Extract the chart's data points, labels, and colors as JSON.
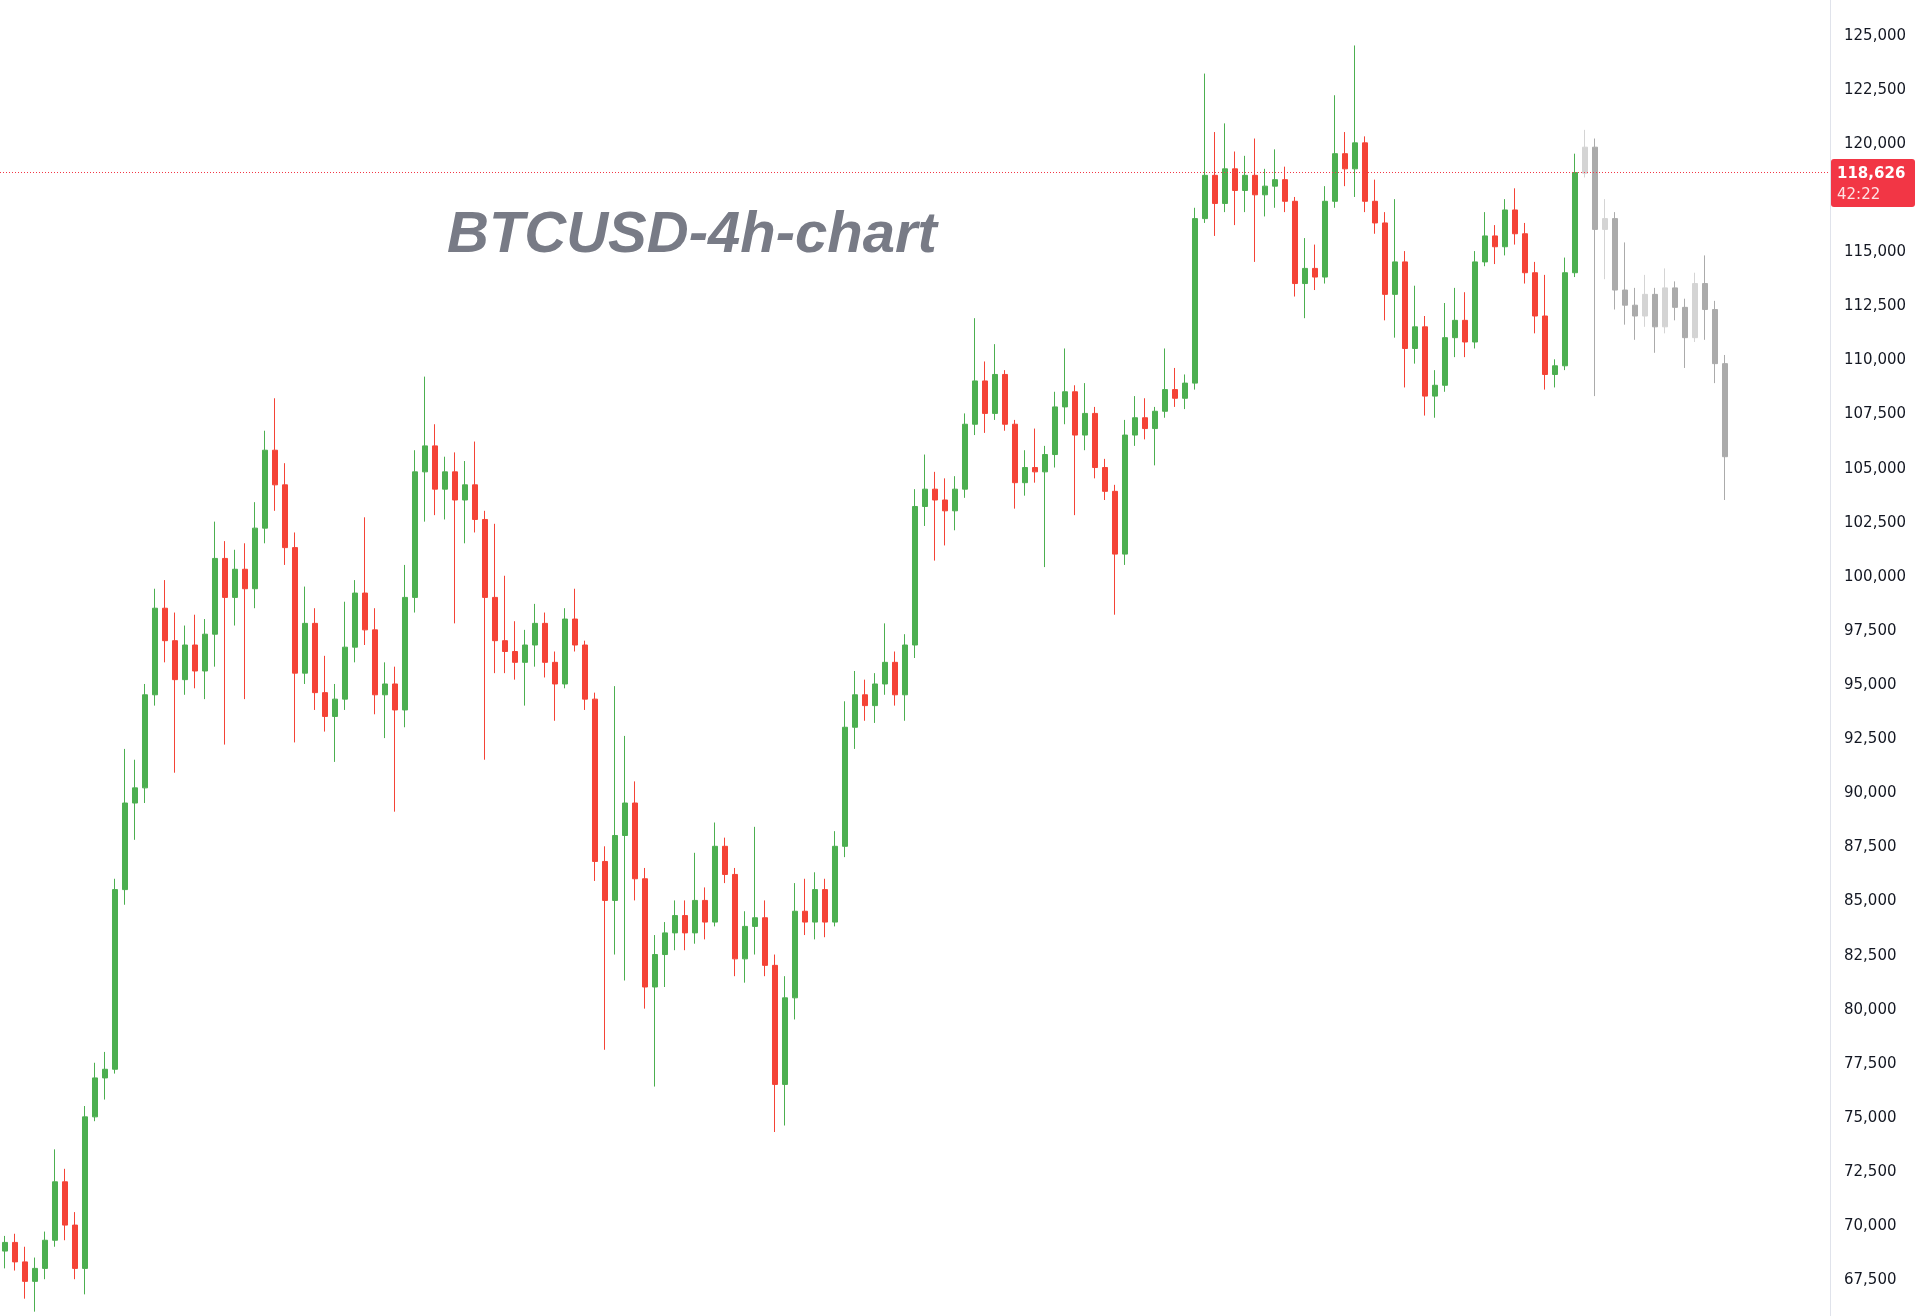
{
  "chart_data": {
    "type": "candlestick",
    "title": "BTCUSD-4h-chart",
    "categories": [
      null,
      null,
      null,
      null,
      null,
      null,
      null,
      null,
      null,
      null,
      null,
      null,
      null,
      null,
      null,
      null,
      null,
      null,
      null,
      null,
      null,
      null,
      null,
      null,
      null,
      null,
      null,
      null,
      null,
      null,
      null,
      null,
      null,
      null,
      null,
      null,
      null,
      null,
      null,
      null,
      null,
      null,
      null,
      null,
      null,
      null,
      null,
      null,
      null,
      null,
      null,
      null,
      null,
      null,
      null,
      null,
      null,
      null,
      null,
      null,
      null,
      null,
      null,
      null,
      null,
      null,
      null,
      null,
      null,
      null,
      null,
      null,
      null,
      null,
      null,
      null,
      null,
      null,
      null,
      null,
      null,
      null,
      null,
      null,
      null,
      null,
      null,
      null,
      null,
      null,
      null,
      null,
      null,
      null,
      null,
      null,
      null,
      null,
      null,
      null,
      null,
      null,
      null,
      null,
      null,
      null,
      null,
      null,
      null,
      null,
      null,
      null,
      null,
      null,
      null,
      null,
      null,
      null,
      null,
      null,
      null,
      null,
      null,
      null,
      null,
      null,
      null,
      null,
      null,
      null,
      null,
      null,
      null,
      null,
      null,
      null,
      null,
      null,
      null,
      null,
      null,
      null,
      null,
      null,
      null,
      null,
      null,
      null,
      null,
      null,
      null,
      null,
      null,
      null,
      null,
      null,
      null,
      null,
      null,
      null,
      null,
      null,
      null,
      null,
      null,
      null,
      null,
      null,
      null,
      null,
      null,
      null,
      null,
      null,
      null,
      null,
      null,
      null,
      null,
      null,
      null,
      null,
      null
    ],
    "series": [
      {
        "ohlc": [
          [
            68800,
            69500,
            68000,
            69200
          ],
          [
            69200,
            69600,
            67900,
            68300
          ],
          [
            68300,
            69000,
            66600,
            67400
          ],
          [
            67400,
            68500,
            66000,
            68000
          ],
          [
            68000,
            69700,
            67500,
            69300
          ],
          [
            69300,
            73500,
            69000,
            72000
          ],
          [
            72000,
            72600,
            69300,
            70000
          ],
          [
            70000,
            70600,
            67500,
            68000
          ],
          [
            68000,
            75500,
            66800,
            75000
          ],
          [
            75000,
            77500,
            74800,
            76800
          ],
          [
            76800,
            78000,
            75800,
            77200
          ],
          [
            77200,
            86000,
            77000,
            85500
          ],
          [
            85500,
            92000,
            84800,
            89500
          ],
          [
            89500,
            91500,
            87800,
            90200
          ],
          [
            90200,
            95000,
            89500,
            94500
          ],
          [
            94500,
            99400,
            94000,
            98500
          ],
          [
            98500,
            99800,
            96000,
            97000
          ],
          [
            97000,
            98300,
            90900,
            95200
          ],
          [
            95200,
            97700,
            94500,
            96800
          ],
          [
            96800,
            98200,
            94800,
            95600
          ],
          [
            95600,
            98000,
            94300,
            97300
          ],
          [
            97300,
            102500,
            95800,
            100800
          ],
          [
            100800,
            101600,
            92200,
            99000
          ],
          [
            99000,
            101200,
            97700,
            100300
          ],
          [
            100300,
            101500,
            94300,
            99400
          ],
          [
            99400,
            103400,
            98500,
            102200
          ],
          [
            102200,
            106700,
            101500,
            105800
          ],
          [
            105800,
            108200,
            103000,
            104200
          ],
          [
            104200,
            105200,
            100500,
            101300
          ],
          [
            101300,
            102000,
            92300,
            95500
          ],
          [
            95500,
            99500,
            95000,
            97800
          ],
          [
            97800,
            98500,
            93800,
            94600
          ],
          [
            94600,
            96300,
            92800,
            93500
          ],
          [
            93500,
            95000,
            91400,
            94300
          ],
          [
            94300,
            98800,
            93800,
            96700
          ],
          [
            96700,
            99800,
            96000,
            99200
          ],
          [
            99200,
            102700,
            96800,
            97500
          ],
          [
            97500,
            98500,
            93600,
            94500
          ],
          [
            94500,
            96000,
            92500,
            95000
          ],
          [
            95000,
            95800,
            89100,
            93800
          ],
          [
            93800,
            100500,
            93000,
            99000
          ],
          [
            99000,
            105800,
            98300,
            104800
          ],
          [
            104800,
            109200,
            102500,
            106000
          ],
          [
            106000,
            107000,
            102800,
            104000
          ],
          [
            104000,
            105500,
            102600,
            104800
          ],
          [
            104800,
            105700,
            97800,
            103500
          ],
          [
            103500,
            105300,
            101500,
            104200
          ],
          [
            104200,
            106200,
            102000,
            102600
          ],
          [
            102600,
            103000,
            91500,
            99000
          ],
          [
            99000,
            102400,
            95500,
            97000
          ],
          [
            97000,
            100000,
            95500,
            96500
          ],
          [
            96500,
            97900,
            95200,
            96000
          ],
          [
            96000,
            97500,
            94000,
            96800
          ],
          [
            96800,
            98700,
            95800,
            97800
          ],
          [
            97800,
            98300,
            95300,
            96000
          ],
          [
            96000,
            96500,
            93300,
            95000
          ],
          [
            95000,
            98500,
            94800,
            98000
          ],
          [
            98000,
            99400,
            96500,
            96800
          ],
          [
            96800,
            97000,
            93800,
            94300
          ],
          [
            94300,
            94600,
            85900,
            86800
          ],
          [
            86800,
            87500,
            78100,
            85000
          ],
          [
            85000,
            94900,
            82500,
            88000
          ],
          [
            88000,
            92600,
            81300,
            89500
          ],
          [
            89500,
            90500,
            85000,
            86000
          ],
          [
            86000,
            86500,
            80000,
            81000
          ],
          [
            81000,
            83400,
            76400,
            82500
          ],
          [
            82500,
            84000,
            81000,
            83500
          ],
          [
            83500,
            85000,
            82700,
            84300
          ],
          [
            84300,
            85000,
            82700,
            83500
          ],
          [
            83500,
            87200,
            83000,
            85000
          ],
          [
            85000,
            85600,
            83200,
            84000
          ],
          [
            84000,
            88600,
            83800,
            87500
          ],
          [
            87500,
            87900,
            85800,
            86200
          ],
          [
            86200,
            86500,
            81500,
            82300
          ],
          [
            82300,
            84500,
            81200,
            83800
          ],
          [
            83800,
            88400,
            82500,
            84200
          ],
          [
            84200,
            85000,
            81500,
            82000
          ],
          [
            82000,
            82500,
            74300,
            76500
          ],
          [
            76500,
            81500,
            74600,
            80500
          ],
          [
            80500,
            85800,
            79500,
            84500
          ],
          [
            84500,
            86000,
            83400,
            84000
          ],
          [
            84000,
            86300,
            83200,
            85500
          ],
          [
            85500,
            86000,
            83300,
            84000
          ],
          [
            84000,
            88200,
            83800,
            87500
          ],
          [
            87500,
            94200,
            87000,
            93000
          ],
          [
            93000,
            95600,
            92000,
            94500
          ],
          [
            94500,
            95200,
            93300,
            94000
          ],
          [
            94000,
            95500,
            93200,
            95000
          ],
          [
            95000,
            97800,
            94500,
            96000
          ],
          [
            96000,
            96500,
            94000,
            94500
          ],
          [
            94500,
            97300,
            93300,
            96800
          ],
          [
            96800,
            104000,
            96200,
            103200
          ],
          [
            103200,
            105600,
            102300,
            104000
          ],
          [
            104000,
            104800,
            100700,
            103500
          ],
          [
            103500,
            104500,
            101400,
            103000
          ],
          [
            103000,
            104600,
            102100,
            104000
          ],
          [
            104000,
            107500,
            103600,
            107000
          ],
          [
            107000,
            111900,
            106500,
            109000
          ],
          [
            109000,
            109900,
            106600,
            107500
          ],
          [
            107500,
            110700,
            107200,
            109300
          ],
          [
            109300,
            109500,
            106700,
            107000
          ],
          [
            107000,
            107200,
            103100,
            104300
          ],
          [
            104300,
            105800,
            103700,
            105000
          ],
          [
            105000,
            106800,
            104300,
            104800
          ],
          [
            104800,
            106000,
            100400,
            105600
          ],
          [
            105600,
            108500,
            105000,
            107800
          ],
          [
            107800,
            110500,
            107000,
            108500
          ],
          [
            108500,
            108800,
            102800,
            106500
          ],
          [
            106500,
            108900,
            105800,
            107500
          ],
          [
            107500,
            107800,
            104500,
            105000
          ],
          [
            105000,
            105400,
            103500,
            103900
          ],
          [
            103900,
            104200,
            98200,
            101000
          ],
          [
            101000,
            107200,
            100500,
            106500
          ],
          [
            106500,
            108300,
            106000,
            107300
          ],
          [
            107300,
            108200,
            106300,
            106800
          ],
          [
            106800,
            107800,
            105100,
            107600
          ],
          [
            107600,
            110500,
            107300,
            108600
          ],
          [
            108600,
            109600,
            107800,
            108200
          ],
          [
            108200,
            109300,
            107700,
            108900
          ],
          [
            108900,
            117000,
            108600,
            116500
          ],
          [
            116500,
            123200,
            116300,
            118500
          ],
          [
            118500,
            120500,
            115700,
            117200
          ],
          [
            117200,
            120900,
            116800,
            118800
          ],
          [
            118800,
            119600,
            116200,
            117800
          ],
          [
            117800,
            119400,
            116800,
            118500
          ],
          [
            118500,
            120200,
            114500,
            117600
          ],
          [
            117600,
            118800,
            116600,
            118000
          ],
          [
            118000,
            119700,
            117000,
            118300
          ],
          [
            118300,
            118900,
            116800,
            117300
          ],
          [
            117300,
            117500,
            112900,
            113500
          ],
          [
            113500,
            115600,
            111900,
            114200
          ],
          [
            114200,
            115300,
            113200,
            113800
          ],
          [
            113800,
            118000,
            113500,
            117300
          ],
          [
            117300,
            122200,
            117000,
            119500
          ],
          [
            119500,
            120500,
            118000,
            118800
          ],
          [
            118800,
            124500,
            117500,
            120000
          ],
          [
            120000,
            120300,
            116800,
            117300
          ],
          [
            117300,
            118300,
            115800,
            116300
          ],
          [
            116300,
            116800,
            111800,
            113000
          ],
          [
            113000,
            117400,
            111000,
            114500
          ],
          [
            114500,
            115000,
            108700,
            110500
          ],
          [
            110500,
            113400,
            109800,
            111500
          ],
          [
            111500,
            112000,
            107400,
            108300
          ],
          [
            108300,
            109500,
            107300,
            108800
          ],
          [
            108800,
            112600,
            108500,
            111000
          ],
          [
            111000,
            113300,
            110100,
            111800
          ],
          [
            111800,
            113100,
            110100,
            110800
          ],
          [
            110800,
            115000,
            110500,
            114500
          ],
          [
            114500,
            116800,
            114300,
            115700
          ],
          [
            115700,
            116200,
            114400,
            115200
          ],
          [
            115200,
            117400,
            114800,
            116900
          ],
          [
            116900,
            117900,
            115300,
            115800
          ],
          [
            115800,
            116300,
            113500,
            114000
          ],
          [
            114000,
            114500,
            111200,
            112000
          ],
          [
            112000,
            113900,
            108600,
            109300
          ],
          [
            109300,
            110000,
            108700,
            109700
          ],
          [
            109700,
            114700,
            109500,
            114000
          ],
          [
            114000,
            119500,
            113800,
            118626
          ],
          null,
          null,
          null,
          null,
          null,
          null,
          null,
          null,
          null,
          null,
          null,
          null,
          null,
          null,
          null,
          null,
          null,
          null,
          null,
          null,
          null,
          null,
          null,
          null,
          null
        ],
        "colors": [
          "#4caf50",
          "#f44336",
          "#f44336",
          "#4caf50",
          "#4caf50",
          "#4caf50",
          "#f44336",
          "#f44336",
          "#4caf50",
          "#4caf50",
          "#4caf50",
          "#4caf50",
          "#4caf50",
          "#4caf50",
          "#4caf50",
          "#4caf50",
          "#f44336",
          "#f44336",
          "#4caf50",
          "#f44336",
          "#4caf50",
          "#4caf50",
          "#f44336",
          "#4caf50",
          "#f44336",
          "#4caf50",
          "#4caf50",
          "#f44336",
          "#f44336",
          "#f44336",
          "#4caf50",
          "#f44336",
          "#f44336",
          "#4caf50",
          "#4caf50",
          "#4caf50",
          "#f44336",
          "#f44336",
          "#4caf50",
          "#f44336",
          "#4caf50",
          "#4caf50",
          "#4caf50",
          "#f44336",
          "#4caf50",
          "#f44336",
          "#4caf50",
          "#f44336",
          "#f44336",
          "#f44336",
          "#f44336",
          "#f44336",
          "#4caf50",
          "#4caf50",
          "#f44336",
          "#f44336",
          "#4caf50",
          "#f44336",
          "#f44336",
          "#f44336",
          "#f44336",
          "#4caf50",
          "#4caf50",
          "#f44336",
          "#f44336",
          "#4caf50",
          "#4caf50",
          "#4caf50",
          "#f44336",
          "#4caf50",
          "#f44336",
          "#4caf50",
          "#f44336",
          "#f44336",
          "#4caf50",
          "#4caf50",
          "#f44336",
          "#f44336",
          "#4caf50",
          "#4caf50",
          "#f44336",
          "#4caf50",
          "#f44336",
          "#4caf50",
          "#4caf50",
          "#4caf50",
          "#f44336",
          "#4caf50",
          "#4caf50",
          "#f44336",
          "#4caf50",
          "#4caf50",
          "#4caf50",
          "#f44336",
          "#f44336",
          "#4caf50",
          "#4caf50",
          "#4caf50",
          "#f44336",
          "#4caf50",
          "#f44336",
          "#f44336",
          "#4caf50",
          "#f44336",
          "#4caf50",
          "#4caf50",
          "#4caf50",
          "#f44336",
          "#4caf50",
          "#f44336",
          "#f44336",
          "#f44336",
          "#4caf50",
          "#4caf50",
          "#f44336",
          "#4caf50",
          "#4caf50",
          "#f44336",
          "#4caf50",
          "#4caf50",
          "#4caf50",
          "#f44336",
          "#4caf50",
          "#f44336",
          "#4caf50",
          "#f44336",
          "#4caf50",
          "#4caf50",
          "#f44336",
          "#f44336",
          "#4caf50",
          "#f44336",
          "#4caf50",
          "#4caf50",
          "#f44336",
          "#4caf50",
          "#f44336",
          "#f44336",
          "#f44336",
          "#4caf50",
          "#f44336",
          "#4caf50",
          "#f44336",
          "#4caf50",
          "#4caf50",
          "#4caf50",
          "#f44336",
          "#4caf50",
          "#4caf50",
          "#f44336",
          "#4caf50",
          "#f44336",
          "#f44336",
          "#f44336",
          "#f44336",
          "#4caf50",
          "#4caf50",
          "#4caf50",
          null,
          null,
          null,
          null,
          null,
          null,
          null,
          null,
          null,
          null,
          null,
          null,
          null,
          null,
          null,
          null,
          null,
          null,
          null,
          null,
          null,
          null,
          null,
          null,
          null
        ]
      },
      {
        "ohlc": [
          null,
          null,
          null,
          null,
          null,
          null,
          null,
          null,
          null,
          null,
          null,
          null,
          null,
          null,
          null,
          null,
          null,
          null,
          null,
          null,
          null,
          null,
          null,
          null,
          null,
          null,
          null,
          null,
          null,
          null,
          null,
          null,
          null,
          null,
          null,
          null,
          null,
          null,
          null,
          null,
          null,
          null,
          null,
          null,
          null,
          null,
          null,
          null,
          null,
          null,
          null,
          null,
          null,
          null,
          null,
          null,
          null,
          null,
          null,
          null,
          null,
          null,
          null,
          null,
          null,
          null,
          null,
          null,
          null,
          null,
          null,
          null,
          null,
          null,
          null,
          null,
          null,
          null,
          null,
          null,
          null,
          null,
          null,
          null,
          null,
          null,
          null,
          null,
          null,
          null,
          null,
          null,
          null,
          null,
          null,
          null,
          null,
          null,
          null,
          null,
          null,
          null,
          null,
          null,
          null,
          null,
          null,
          null,
          null,
          null,
          null,
          null,
          null,
          null,
          null,
          null,
          null,
          null,
          null,
          null,
          null,
          null,
          null,
          null,
          null,
          null,
          null,
          null,
          null,
          null,
          null,
          null,
          null,
          null,
          null,
          null,
          null,
          null,
          null,
          null,
          null,
          null,
          null,
          null,
          null,
          null,
          null,
          null,
          null,
          null,
          null,
          null,
          null,
          null,
          null,
          null,
          null,
          null,
          [
            118600,
            120600,
            118400,
            119800
          ],
          [
            119800,
            120200,
            108300,
            116000
          ],
          [
            116000,
            117400,
            113700,
            116500
          ],
          [
            116500,
            116800,
            112300,
            113200
          ],
          [
            113200,
            115400,
            111600,
            112500
          ],
          [
            112500,
            113300,
            110900,
            112000
          ],
          [
            112000,
            113900,
            111500,
            113000
          ],
          [
            113000,
            113300,
            110300,
            111500
          ],
          [
            111500,
            114200,
            111200,
            113300
          ],
          [
            113300,
            113600,
            111800,
            112400
          ],
          [
            112400,
            112800,
            109600,
            111000
          ],
          [
            111000,
            114000,
            110800,
            113500
          ],
          [
            113500,
            114800,
            110900,
            112300
          ],
          [
            112300,
            112700,
            108900,
            109800
          ],
          [
            109800,
            110200,
            103500,
            105500
          ],
          null,
          null,
          null,
          null,
          null,
          null,
          null,
          null,
          null,
          null
        ],
        "colors": [
          null,
          null,
          null,
          null,
          null,
          null,
          null,
          null,
          null,
          null,
          null,
          null,
          null,
          null,
          null,
          null,
          null,
          null,
          null,
          null,
          null,
          null,
          null,
          null,
          null,
          null,
          null,
          null,
          null,
          null,
          null,
          null,
          null,
          null,
          null,
          null,
          null,
          null,
          null,
          null,
          null,
          null,
          null,
          null,
          null,
          null,
          null,
          null,
          null,
          null,
          null,
          null,
          null,
          null,
          null,
          null,
          null,
          null,
          null,
          null,
          null,
          null,
          null,
          null,
          null,
          null,
          null,
          null,
          null,
          null,
          null,
          null,
          null,
          null,
          null,
          null,
          null,
          null,
          null,
          null,
          null,
          null,
          null,
          null,
          null,
          null,
          null,
          null,
          null,
          null,
          null,
          null,
          null,
          null,
          null,
          null,
          null,
          null,
          null,
          null,
          null,
          null,
          null,
          null,
          null,
          null,
          null,
          null,
          null,
          null,
          null,
          null,
          null,
          null,
          null,
          null,
          null,
          null,
          null,
          null,
          null,
          null,
          null,
          null,
          null,
          null,
          null,
          null,
          null,
          null,
          null,
          null,
          null,
          null,
          null,
          null,
          null,
          null,
          null,
          null,
          null,
          null,
          null,
          null,
          null,
          null,
          null,
          null,
          null,
          null,
          null,
          null,
          null,
          null,
          null,
          null,
          null,
          null,
          "#d4d4d4",
          "#ababab",
          "#d4d4d4",
          "#ababab",
          "#ababab",
          "#ababab",
          "#d4d4d4",
          "#ababab",
          "#d4d4d4",
          "#ababab",
          "#ababab",
          "#d4d4d4",
          "#ababab",
          "#ababab",
          "#ababab",
          null,
          null,
          null,
          null,
          null,
          null,
          null,
          null,
          null,
          null
        ]
      }
    ],
    "ylim": [
      65800,
      126600
    ],
    "yticks": [
      {
        "value": 67500,
        "label": "67,500"
      },
      {
        "value": 70000,
        "label": "70,000"
      },
      {
        "value": 72500,
        "label": "72,500"
      },
      {
        "value": 75000,
        "label": "75,000"
      },
      {
        "value": 77500,
        "label": "77,500"
      },
      {
        "value": 80000,
        "label": "80,000"
      },
      {
        "value": 82500,
        "label": "82,500"
      },
      {
        "value": 85000,
        "label": "85,000"
      },
      {
        "value": 87500,
        "label": "87,500"
      },
      {
        "value": 90000,
        "label": "90,000"
      },
      {
        "value": 92500,
        "label": "92,500"
      },
      {
        "value": 95000,
        "label": "95,000"
      },
      {
        "value": 97500,
        "label": "97,500"
      },
      {
        "value": 100000,
        "label": "100,000"
      },
      {
        "value": 102500,
        "label": "102,500"
      },
      {
        "value": 105000,
        "label": "105,000"
      },
      {
        "value": 107500,
        "label": "107,500"
      },
      {
        "value": 110000,
        "label": "110,000"
      },
      {
        "value": 112500,
        "label": "112,500"
      },
      {
        "value": 115000,
        "label": "115,000"
      },
      {
        "value": 120000,
        "label": "120,000"
      },
      {
        "value": 122500,
        "label": "122,500"
      },
      {
        "value": 125000,
        "label": "125,000"
      }
    ],
    "tick_labels": "y",
    "ref_lines": [
      {
        "axis": "y",
        "value": 118626,
        "label": "118,626",
        "color": "#f23645",
        "line_style": "dotted"
      }
    ],
    "annotations": [
      "42:22"
    ]
  }
}
